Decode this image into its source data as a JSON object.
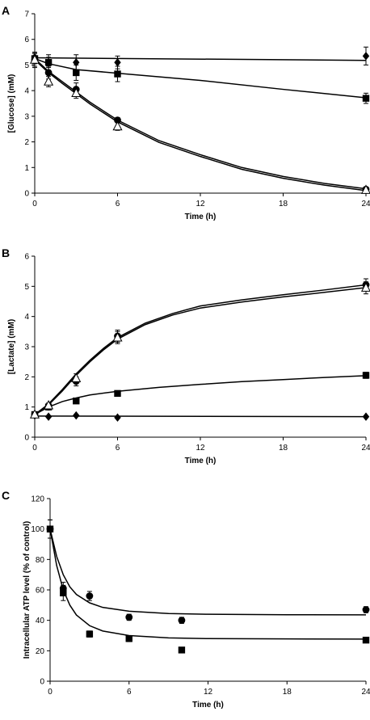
{
  "chart_data": [
    {
      "type": "scatter",
      "panel_label": "A",
      "xlabel": "Time (h)",
      "ylabel": "[Glucose] (mM)",
      "xlim": [
        0,
        24
      ],
      "ylim": [
        0,
        7
      ],
      "xticks": [
        0,
        6,
        12,
        18,
        24
      ],
      "yticks": [
        0,
        1,
        2,
        3,
        4,
        5,
        6,
        7
      ],
      "series": [
        {
          "marker": "diamond",
          "x": [
            0,
            1,
            3,
            6,
            24
          ],
          "y": [
            5.3,
            5.1,
            5.1,
            5.1,
            5.35
          ],
          "err": [
            0.2,
            0.3,
            0.3,
            0.25,
            0.35
          ],
          "fit": [
            [
              0,
              5.28
            ],
            [
              24,
              5.18
            ]
          ]
        },
        {
          "marker": "square",
          "x": [
            0,
            1,
            3,
            6,
            24
          ],
          "y": [
            5.25,
            5.1,
            4.7,
            4.65,
            3.7
          ],
          "err": [
            0.2,
            0.2,
            0.3,
            0.3,
            0.2
          ],
          "fit": [
            [
              0,
              5.25
            ],
            [
              1,
              5.05
            ],
            [
              3,
              4.82
            ],
            [
              6,
              4.68
            ],
            [
              12,
              4.4
            ],
            [
              18,
              4.05
            ],
            [
              24,
              3.72
            ]
          ]
        },
        {
          "marker": "circle",
          "x": [
            0,
            1,
            3,
            6,
            24
          ],
          "y": [
            5.2,
            4.7,
            4.05,
            2.85,
            0.15
          ],
          "err": [
            0.25,
            0.25,
            0.25,
            0.1,
            0.05
          ],
          "fit": [
            [
              0,
              5.25
            ],
            [
              1,
              4.75
            ],
            [
              2,
              4.35
            ],
            [
              3,
              3.95
            ],
            [
              4,
              3.55
            ],
            [
              6,
              2.85
            ],
            [
              9,
              2.05
            ],
            [
              12,
              1.5
            ],
            [
              15,
              1.0
            ],
            [
              18,
              0.65
            ],
            [
              21,
              0.38
            ],
            [
              24,
              0.17
            ]
          ]
        },
        {
          "marker": "triangle-open",
          "x": [
            0,
            1,
            3,
            6,
            24
          ],
          "y": [
            5.2,
            4.35,
            3.9,
            2.6,
            0.12
          ],
          "err": [
            0.3,
            0.2,
            0.2,
            0.15,
            0.05
          ],
          "fit": [
            [
              0,
              5.2
            ],
            [
              1,
              4.7
            ],
            [
              2,
              4.28
            ],
            [
              3,
              3.88
            ],
            [
              4,
              3.48
            ],
            [
              6,
              2.78
            ],
            [
              9,
              1.98
            ],
            [
              12,
              1.43
            ],
            [
              15,
              0.93
            ],
            [
              18,
              0.58
            ],
            [
              21,
              0.31
            ],
            [
              24,
              0.1
            ]
          ]
        }
      ]
    },
    {
      "type": "scatter",
      "panel_label": "B",
      "xlabel": "Time (h)",
      "ylabel": "[Lactate] (mM)",
      "xlim": [
        0,
        24
      ],
      "ylim": [
        0,
        6
      ],
      "xticks": [
        0,
        6,
        12,
        18,
        24
      ],
      "yticks": [
        0,
        1,
        2,
        3,
        4,
        5,
        6
      ],
      "series": [
        {
          "marker": "diamond",
          "x": [
            0,
            1,
            3,
            6,
            24
          ],
          "y": [
            0.72,
            0.68,
            0.72,
            0.65,
            0.68
          ],
          "err": [
            0.05,
            0.03,
            0.03,
            0.03,
            0.03
          ],
          "fit": [
            [
              0,
              0.7
            ],
            [
              24,
              0.68
            ]
          ]
        },
        {
          "marker": "square",
          "x": [
            0,
            1,
            3,
            6,
            24
          ],
          "y": [
            0.75,
            1.0,
            1.2,
            1.45,
            2.05
          ],
          "err": [
            0.05,
            0.05,
            0.05,
            0.08,
            0.1
          ],
          "fit": [
            [
              0,
              0.75
            ],
            [
              1,
              1.0
            ],
            [
              2,
              1.18
            ],
            [
              3,
              1.3
            ],
            [
              4,
              1.4
            ],
            [
              6,
              1.52
            ],
            [
              9,
              1.65
            ],
            [
              12,
              1.75
            ],
            [
              15,
              1.84
            ],
            [
              18,
              1.91
            ],
            [
              21,
              1.98
            ],
            [
              24,
              2.04
            ]
          ]
        },
        {
          "marker": "circle",
          "x": [
            0,
            1,
            3,
            6,
            24
          ],
          "y": [
            0.75,
            1.0,
            1.85,
            3.35,
            5.05
          ],
          "err": [
            0.05,
            0.08,
            0.15,
            0.2,
            0.2
          ],
          "fit": [
            [
              0,
              0.75
            ],
            [
              1,
              1.1
            ],
            [
              2,
              1.58
            ],
            [
              3,
              2.1
            ],
            [
              4,
              2.55
            ],
            [
              5,
              2.95
            ],
            [
              6,
              3.3
            ],
            [
              8,
              3.78
            ],
            [
              10,
              4.1
            ],
            [
              12,
              4.35
            ],
            [
              15,
              4.55
            ],
            [
              18,
              4.72
            ],
            [
              21,
              4.88
            ],
            [
              24,
              5.05
            ]
          ]
        },
        {
          "marker": "triangle-open",
          "x": [
            0,
            1,
            3,
            6,
            24
          ],
          "y": [
            0.75,
            1.05,
            1.95,
            3.3,
            4.95
          ],
          "err": [
            0.05,
            0.08,
            0.15,
            0.2,
            0.2
          ],
          "fit": [
            [
              0,
              0.75
            ],
            [
              1,
              1.07
            ],
            [
              2,
              1.53
            ],
            [
              3,
              2.05
            ],
            [
              4,
              2.5
            ],
            [
              5,
              2.9
            ],
            [
              6,
              3.25
            ],
            [
              8,
              3.73
            ],
            [
              10,
              4.05
            ],
            [
              12,
              4.28
            ],
            [
              15,
              4.48
            ],
            [
              18,
              4.65
            ],
            [
              21,
              4.8
            ],
            [
              24,
              4.96
            ]
          ]
        }
      ]
    },
    {
      "type": "scatter",
      "panel_label": "C",
      "xlabel": "Time (h)",
      "ylabel": "Intracellular ATP level (% of control)",
      "xlim": [
        0,
        24
      ],
      "ylim": [
        0,
        120
      ],
      "xticks": [
        0,
        6,
        12,
        18,
        24
      ],
      "yticks": [
        0,
        20,
        40,
        60,
        80,
        100,
        120
      ],
      "series": [
        {
          "marker": "circle",
          "x": [
            0,
            1,
            3,
            6,
            10,
            24
          ],
          "y": [
            100,
            61,
            56,
            42,
            40,
            47
          ],
          "err": [
            6,
            4,
            3,
            2,
            2,
            2
          ],
          "fit": [
            [
              0,
              100
            ],
            [
              0.5,
              82
            ],
            [
              1,
              70
            ],
            [
              1.5,
              62
            ],
            [
              2,
              57
            ],
            [
              3,
              51.5
            ],
            [
              4,
              48.5
            ],
            [
              6,
              46
            ],
            [
              9,
              44.5
            ],
            [
              12,
              44
            ],
            [
              18,
              43.7
            ],
            [
              24,
              43.6
            ]
          ]
        },
        {
          "marker": "square",
          "x": [
            0,
            1,
            3,
            6,
            10,
            24
          ],
          "y": [
            100,
            58,
            31,
            28,
            20.5,
            27
          ],
          "err": [
            6,
            5,
            2,
            2,
            1.5,
            1.5
          ],
          "fit": [
            [
              0,
              100
            ],
            [
              0.5,
              76
            ],
            [
              1,
              60
            ],
            [
              1.5,
              50
            ],
            [
              2,
              43.5
            ],
            [
              3,
              36.5
            ],
            [
              4,
              33
            ],
            [
              6,
              30
            ],
            [
              9,
              28.5
            ],
            [
              12,
              28
            ],
            [
              18,
              27.8
            ],
            [
              24,
              27.7
            ]
          ]
        }
      ]
    }
  ]
}
